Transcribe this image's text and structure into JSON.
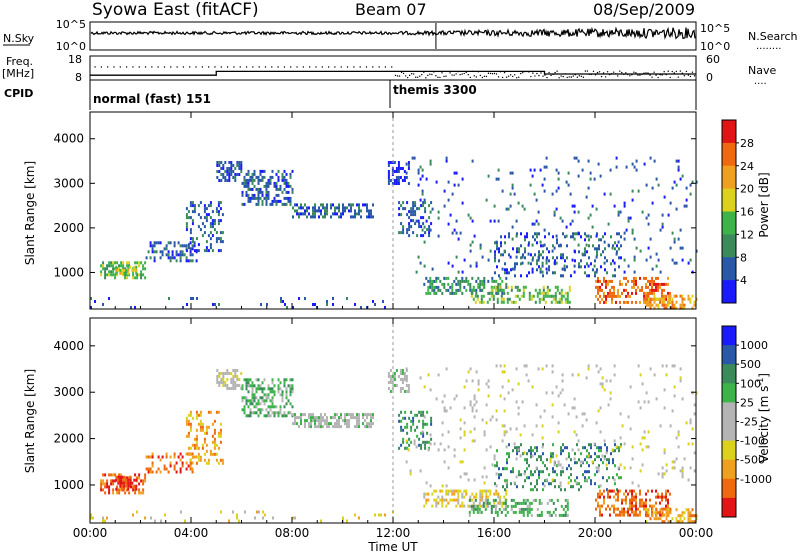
{
  "header": {
    "station": "Syowa East (fitACF)",
    "beam": "Beam 07",
    "date": "08/Sep/2009"
  },
  "colors": {
    "power_scale": [
      "#1a1aff",
      "#2a58a8",
      "#3a8a5a",
      "#3cb44a",
      "#dcd21e",
      "#f0a020",
      "#ee6a10",
      "#e21414"
    ],
    "velocity_scale": [
      "#e21414",
      "#ee6a10",
      "#f0a020",
      "#dcd21e",
      "#b4b4b4",
      "#b4b4b4",
      "#3cb44a",
      "#3a8a5a",
      "#2a58a8",
      "#1a1aff"
    ]
  },
  "chart_data": [
    {
      "type": "line",
      "name": "noise-panel",
      "left_labels": [
        "N.Sky"
      ],
      "right_labels": [
        "N.Search"
      ],
      "right_legend_dots": "........",
      "yticks_left": [
        "10^5",
        "10^0"
      ],
      "yticks_right": [
        "10^5",
        "10^0"
      ],
      "x_range_hours": [
        0,
        24
      ]
    },
    {
      "type": "line",
      "name": "frequency-nave-panel",
      "left_label_lines": [
        "Freq.",
        "[MHz]"
      ],
      "right_labels": [
        "Nave"
      ],
      "right_legend_dots": "....",
      "yticks_left": [
        "18",
        "8"
      ],
      "yticks_right": [
        "60",
        "0"
      ],
      "freq_steps": [
        {
          "from_h": 0.0,
          "to_h": 5.0,
          "mhz": 10.0
        },
        {
          "from_h": 5.0,
          "to_h": 18.0,
          "mhz": 11.6
        },
        {
          "from_h": 18.0,
          "to_h": 24.0,
          "mhz": 10.5
        }
      ],
      "x_range_hours": [
        0,
        24
      ]
    },
    {
      "type": "table",
      "name": "cpid-strip",
      "label": "CPID",
      "programs": [
        {
          "start_h": 0.0,
          "label": "normal (fast) 151"
        },
        {
          "start_h": 12.0,
          "label": "themis 3300"
        }
      ]
    },
    {
      "type": "heatmap",
      "name": "power-panel",
      "ylabel": "Slant Range [km]",
      "colorbar_label": "Power [dB]",
      "colorbar_ticks": [
        "28",
        "24",
        "20",
        "16",
        "12",
        "8",
        "4"
      ],
      "ylim": [
        180,
        4600
      ],
      "yticks": [
        "1000",
        "2000",
        "3000",
        "4000"
      ],
      "x_range_hours": [
        0,
        24
      ],
      "echo_regions": [
        {
          "t0": 0.4,
          "t1": 2.2,
          "r0": 850,
          "r1": 1250,
          "level": 3,
          "density": 0.55
        },
        {
          "t0": 1.0,
          "t1": 1.8,
          "r0": 950,
          "r1": 1150,
          "level": 4,
          "density": 0.6
        },
        {
          "t0": 2.2,
          "t1": 4.2,
          "r0": 1250,
          "r1": 1700,
          "level": 1,
          "density": 0.35
        },
        {
          "t0": 3.8,
          "t1": 5.3,
          "r0": 1500,
          "r1": 2600,
          "level": 1,
          "density": 0.3
        },
        {
          "t0": 5.0,
          "t1": 6.0,
          "r0": 3050,
          "r1": 3500,
          "level": 1,
          "density": 0.6
        },
        {
          "t0": 6.0,
          "t1": 8.0,
          "r0": 2500,
          "r1": 3300,
          "level": 1,
          "density": 0.45
        },
        {
          "t0": 8.0,
          "t1": 11.2,
          "r0": 2250,
          "r1": 2550,
          "level": 1,
          "density": 0.55
        },
        {
          "t0": 11.8,
          "t1": 12.6,
          "r0": 3000,
          "r1": 3500,
          "level": 0,
          "density": 0.5
        },
        {
          "t0": 12.2,
          "t1": 13.5,
          "r0": 1800,
          "r1": 2600,
          "level": 1,
          "density": 0.35
        },
        {
          "t0": 13.2,
          "t1": 16.5,
          "r0": 550,
          "r1": 900,
          "level": 2,
          "density": 0.45
        },
        {
          "t0": 15.0,
          "t1": 19.0,
          "r0": 350,
          "r1": 700,
          "level": 3,
          "density": 0.4
        },
        {
          "t0": 16.0,
          "t1": 21.0,
          "r0": 900,
          "r1": 1900,
          "level": 1,
          "density": 0.18
        },
        {
          "t0": 20.0,
          "t1": 23.0,
          "r0": 350,
          "r1": 900,
          "level": 6,
          "density": 0.45
        },
        {
          "t0": 22.0,
          "t1": 24.0,
          "r0": 200,
          "r1": 500,
          "level": 5,
          "density": 0.5
        },
        {
          "t0": 12.5,
          "t1": 24.0,
          "r0": 1000,
          "r1": 3600,
          "level": 1,
          "density": 0.05
        },
        {
          "t0": 0.0,
          "t1": 12.0,
          "r0": 200,
          "r1": 450,
          "level": 1,
          "density": 0.06
        }
      ]
    },
    {
      "type": "heatmap",
      "name": "velocity-panel",
      "ylabel": "Slant Range [km]",
      "colorbar_label": "Velocity [m s^-1]",
      "colorbar_ticks": [
        "1000",
        "500",
        "100",
        "25",
        "-25",
        "-100",
        "-500",
        "-1000"
      ],
      "ylim": [
        180,
        4600
      ],
      "yticks": [
        "1000",
        "2000",
        "3000",
        "4000"
      ],
      "x_range_hours": [
        0,
        24
      ],
      "echo_regions": [
        {
          "t0": 0.4,
          "t1": 2.2,
          "r0": 850,
          "r1": 1250,
          "level": 1,
          "density": 0.55
        },
        {
          "t0": 1.0,
          "t1": 1.8,
          "r0": 900,
          "r1": 1200,
          "level": 0,
          "density": 0.6
        },
        {
          "t0": 2.2,
          "t1": 4.2,
          "r0": 1250,
          "r1": 1700,
          "level": 1,
          "density": 0.35
        },
        {
          "t0": 3.8,
          "t1": 5.3,
          "r0": 1500,
          "r1": 2600,
          "level": 2,
          "density": 0.3
        },
        {
          "t0": 5.0,
          "t1": 6.0,
          "r0": 3050,
          "r1": 3500,
          "level": 4,
          "density": 0.6
        },
        {
          "t0": 6.0,
          "t1": 8.0,
          "r0": 2500,
          "r1": 3300,
          "level": 6,
          "density": 0.45
        },
        {
          "t0": 8.0,
          "t1": 11.2,
          "r0": 2250,
          "r1": 2550,
          "level": 5,
          "density": 0.55
        },
        {
          "t0": 11.8,
          "t1": 12.6,
          "r0": 3000,
          "r1": 3500,
          "level": 5,
          "density": 0.5
        },
        {
          "t0": 12.2,
          "t1": 13.5,
          "r0": 1800,
          "r1": 2600,
          "level": 7,
          "density": 0.35
        },
        {
          "t0": 13.2,
          "t1": 16.5,
          "r0": 550,
          "r1": 900,
          "level": 3,
          "density": 0.45
        },
        {
          "t0": 15.0,
          "t1": 19.0,
          "r0": 350,
          "r1": 700,
          "level": 6,
          "density": 0.4
        },
        {
          "t0": 16.0,
          "t1": 21.0,
          "r0": 900,
          "r1": 1900,
          "level": 7,
          "density": 0.18
        },
        {
          "t0": 20.0,
          "t1": 23.0,
          "r0": 350,
          "r1": 900,
          "level": 1,
          "density": 0.45
        },
        {
          "t0": 22.0,
          "t1": 24.0,
          "r0": 200,
          "r1": 500,
          "level": 2,
          "density": 0.5
        },
        {
          "t0": 12.5,
          "t1": 24.0,
          "r0": 1000,
          "r1": 3600,
          "level": 4,
          "density": 0.05
        },
        {
          "t0": 0.0,
          "t1": 12.0,
          "r0": 200,
          "r1": 450,
          "level": 3,
          "density": 0.06
        }
      ]
    }
  ],
  "x_axis": {
    "label": "Time UT",
    "ticks": [
      "00:00",
      "04:00",
      "08:00",
      "12:00",
      "16:00",
      "20:00",
      "00:00"
    ]
  }
}
